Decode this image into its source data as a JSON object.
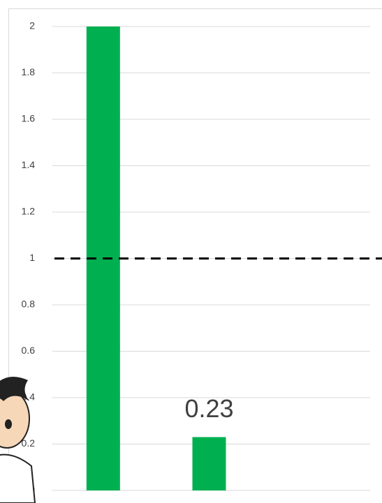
{
  "chart_data": {
    "type": "bar",
    "categories": [
      null,
      null,
      null
    ],
    "values": [
      2,
      0.23,
      null
    ],
    "value_labels": [
      null,
      "0.23",
      null
    ],
    "color": "#00b050",
    "ylim": [
      0,
      2
    ],
    "yticks": [
      0,
      0.2,
      0.4,
      0.6,
      0.8,
      1,
      1.2,
      1.4,
      1.6,
      1.8,
      2
    ],
    "grid": true,
    "reference_line": 1
  }
}
